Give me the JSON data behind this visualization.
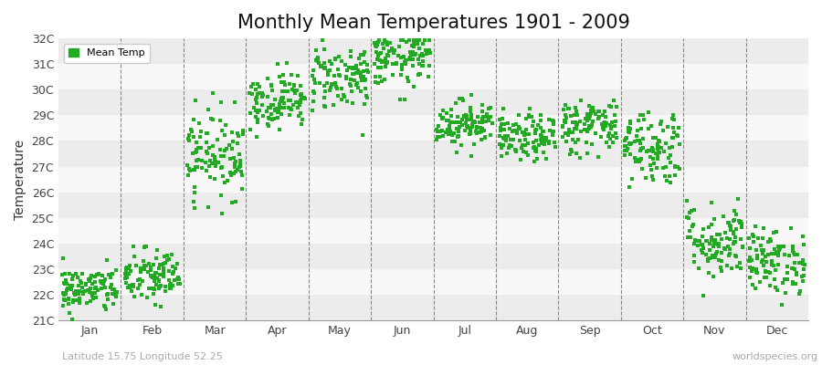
{
  "title": "Monthly Mean Temperatures 1901 - 2009",
  "ylabel": "Temperature",
  "subtitle": "Latitude 15.75 Longitude 52.25",
  "watermark": "worldspecies.org",
  "ylim": [
    21,
    32
  ],
  "yticks": [
    21,
    22,
    23,
    24,
    25,
    26,
    27,
    28,
    29,
    30,
    31,
    32
  ],
  "ytick_labels": [
    "21C",
    "22C",
    "23C",
    "24C",
    "25C",
    "26C",
    "27C",
    "28C",
    "29C",
    "30C",
    "31C",
    "32C"
  ],
  "months": [
    "Jan",
    "Feb",
    "Mar",
    "Apr",
    "May",
    "Jun",
    "Jul",
    "Aug",
    "Sep",
    "Oct",
    "Nov",
    "Dec"
  ],
  "dot_color": "#22aa22",
  "dot_size": 5,
  "bg_color": "#ffffff",
  "plot_bg_color": "#ffffff",
  "band_color_odd": "#ececec",
  "band_color_even": "#f8f8f8",
  "grid_color": "#888888",
  "title_fontsize": 15,
  "axis_label_fontsize": 10,
  "tick_fontsize": 9,
  "legend_label": "Mean Temp",
  "monthly_means": [
    22.2,
    22.7,
    27.5,
    29.6,
    30.5,
    31.2,
    28.7,
    28.1,
    28.6,
    27.8,
    24.1,
    23.3
  ],
  "monthly_stds": [
    0.45,
    0.55,
    0.85,
    0.55,
    0.65,
    0.55,
    0.45,
    0.45,
    0.55,
    0.75,
    0.75,
    0.65
  ],
  "n_years": 109
}
